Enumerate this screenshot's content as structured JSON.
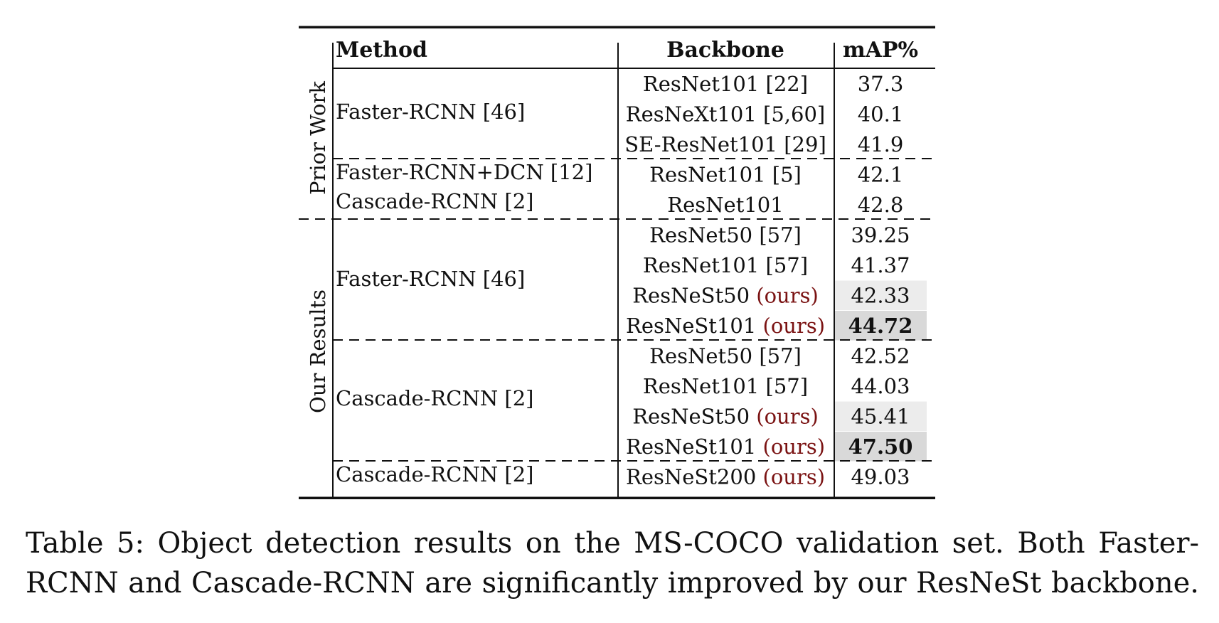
{
  "table": {
    "headers": {
      "method": "Method",
      "backbone": "Backbone",
      "map": "mAP%"
    },
    "groups": {
      "prior": "Prior Work",
      "ours": "Our Results"
    },
    "methods": {
      "frcnn_prior": "Faster-RCNN [46]",
      "frcnn_dcn": "Faster-RCNN+DCN [12]",
      "cascade_prior": "Cascade-RCNN [2]",
      "frcnn_ours": "Faster-RCNN [46]",
      "cascade_ours": "Cascade-RCNN [2]",
      "cascade_200": "Cascade-RCNN [2]"
    },
    "rows": [
      {
        "backbone": "ResNet101 [22]",
        "map": "37.3"
      },
      {
        "backbone": "ResNeXt101 [5,60]",
        "map": "40.1"
      },
      {
        "backbone": "SE-ResNet101 [29]",
        "map": "41.9"
      },
      {
        "backbone": "ResNet101 [5]",
        "map": "42.1"
      },
      {
        "backbone": "ResNet101",
        "map": "42.8"
      },
      {
        "backbone": "ResNet50 [57]",
        "map": "39.25"
      },
      {
        "backbone": "ResNet101 [57]",
        "map": "41.37"
      },
      {
        "backbone": "ResNeSt50",
        "ours": "(ours)",
        "map": "42.33",
        "shade": "#ececec"
      },
      {
        "backbone": "ResNeSt101",
        "ours": "(ours)",
        "map": "44.72",
        "bold": true,
        "shade": "#d9d9d9"
      },
      {
        "backbone": "ResNet50 [57]",
        "map": "42.52"
      },
      {
        "backbone": "ResNet101 [57]",
        "map": "44.03"
      },
      {
        "backbone": "ResNeSt50",
        "ours": "(ours)",
        "map": "45.41",
        "shade": "#ececec"
      },
      {
        "backbone": "ResNeSt101",
        "ours": "(ours)",
        "map": "47.50",
        "bold": true,
        "shade": "#d9d9d9"
      },
      {
        "backbone": "ResNeSt200",
        "ours": "(ours)",
        "map": "49.03"
      }
    ],
    "colors": {
      "ours_text": "#7a1212",
      "shade_light": "#ececec",
      "shade_dark": "#d9d9d9"
    }
  },
  "caption": {
    "line1": "Table 5: Object detection results on the MS-COCO validation set. Both Faster-",
    "line2": "RCNN and Cascade-RCNN are significantly improved by our ResNeSt backbone."
  }
}
